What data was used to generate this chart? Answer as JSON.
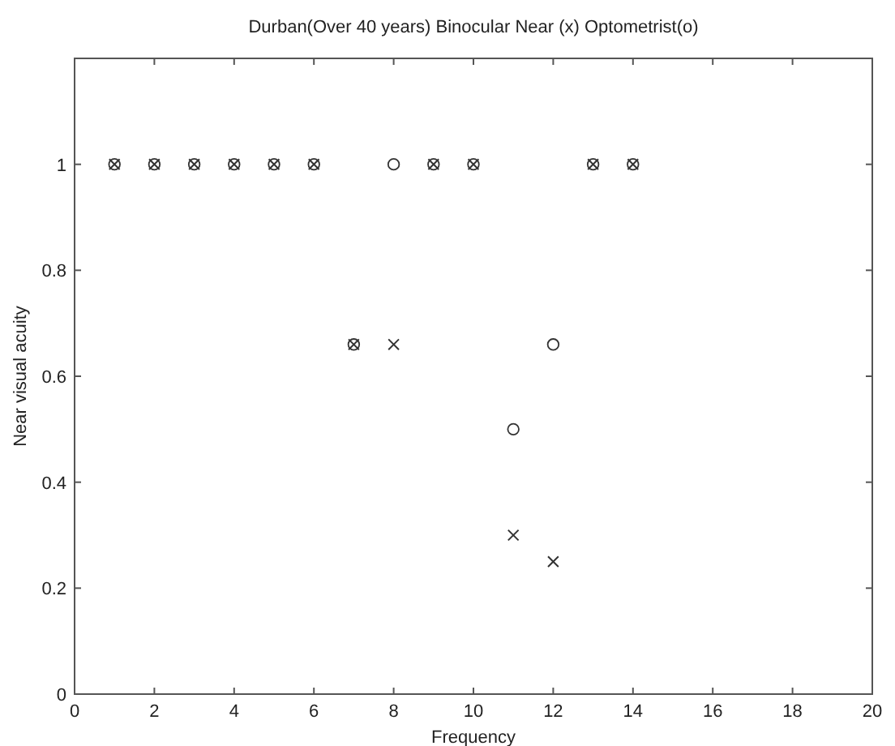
{
  "chart_data": {
    "type": "scatter",
    "title": "Durban(Over 40 years) Binocular Near (x) Optometrist(o)",
    "xlabel": "Frequency",
    "ylabel": "Near visual acuity",
    "xlim": [
      0,
      20
    ],
    "xticks": [
      0,
      2,
      4,
      6,
      8,
      10,
      12,
      14,
      16,
      18,
      20
    ],
    "ylim": [
      0,
      1.2
    ],
    "yticks": [
      0,
      0.2,
      0.4,
      0.6,
      0.8,
      1
    ],
    "grid": false,
    "series": [
      {
        "color": "#333333",
        "marker": "cross",
        "x": [
          1,
          2,
          3,
          4,
          5,
          6,
          7,
          8,
          9,
          10,
          11,
          12,
          13,
          14
        ],
        "values": [
          1,
          1,
          1,
          1,
          1,
          1,
          0.66,
          0.66,
          1,
          1,
          0.3,
          0.25,
          1,
          1
        ]
      },
      {
        "color": "#333333",
        "marker": "circle",
        "x": [
          1,
          2,
          3,
          4,
          5,
          6,
          7,
          8,
          9,
          10,
          11,
          12,
          13,
          14
        ],
        "values": [
          1,
          1,
          1,
          1,
          1,
          1,
          0.66,
          1,
          1,
          1,
          0.5,
          0.66,
          1,
          1
        ]
      }
    ]
  }
}
